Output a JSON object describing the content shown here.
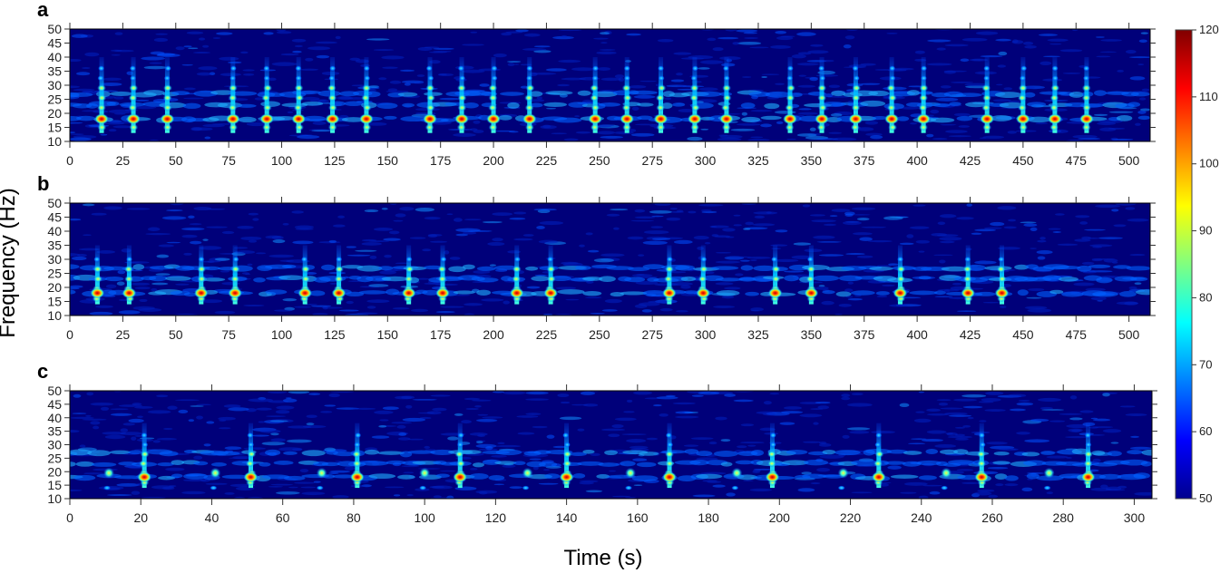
{
  "chart_data": [
    {
      "type": "heatmap",
      "panel_label": "a",
      "xlim": [
        0,
        510
      ],
      "ylim": [
        10,
        50
      ],
      "x_ticks": [
        "0",
        "25",
        "50",
        "75",
        "100",
        "125",
        "150",
        "175",
        "200",
        "225",
        "250",
        "275",
        "300",
        "325",
        "350",
        "375",
        "400",
        "425",
        "450",
        "475",
        "500"
      ],
      "y_ticks": [
        "10",
        "15",
        "20",
        "25",
        "30",
        "35",
        "40",
        "45",
        "50"
      ],
      "call_times_s": [
        15,
        30,
        46,
        77,
        93,
        108,
        124,
        140,
        170,
        185,
        200,
        217,
        248,
        263,
        279,
        295,
        310,
        340,
        355,
        371,
        388,
        403,
        433,
        450,
        465,
        480
      ],
      "call_freq_range_hz": [
        13,
        40
      ],
      "peak_freq_hz": 18
    },
    {
      "type": "heatmap",
      "panel_label": "b",
      "xlim": [
        0,
        510
      ],
      "ylim": [
        10,
        50
      ],
      "x_ticks": [
        "0",
        "25",
        "50",
        "75",
        "100",
        "125",
        "150",
        "175",
        "200",
        "225",
        "250",
        "275",
        "300",
        "325",
        "350",
        "375",
        "400",
        "425",
        "450",
        "475",
        "500"
      ],
      "y_ticks": [
        "10",
        "15",
        "20",
        "25",
        "30",
        "35",
        "40",
        "45",
        "50"
      ],
      "call_times_s": [
        13,
        28,
        62,
        78,
        111,
        127,
        160,
        176,
        211,
        227,
        283,
        299,
        333,
        350,
        392,
        424,
        440
      ],
      "call_freq_range_hz": [
        14,
        35
      ],
      "peak_freq_hz": 18
    },
    {
      "type": "heatmap",
      "panel_label": "c",
      "xlim": [
        0,
        305
      ],
      "ylim": [
        10,
        50
      ],
      "x_ticks": [
        "0",
        "20",
        "40",
        "60",
        "80",
        "100",
        "120",
        "140",
        "160",
        "180",
        "200",
        "220",
        "240",
        "260",
        "280",
        "300"
      ],
      "y_ticks": [
        "10",
        "15",
        "20",
        "25",
        "30",
        "35",
        "40",
        "45",
        "50"
      ],
      "long_call_times_s": [
        21,
        51,
        81,
        110,
        140,
        169,
        198,
        228,
        257,
        287
      ],
      "short_call_times_s": [
        11,
        41,
        71,
        100,
        129,
        158,
        188,
        218,
        247,
        276
      ],
      "call_freq_range_hz": [
        14,
        38
      ],
      "peak_freq_hz": 18
    }
  ],
  "xlabel": "Time (s)",
  "ylabel": "Frequency (Hz)",
  "colorbar": {
    "range": [
      50,
      120
    ],
    "tick_labels": [
      "50",
      "60",
      "70",
      "80",
      "90",
      "100",
      "110",
      "120"
    ],
    "colormap": "jet",
    "colors": [
      "#00008f",
      "#0000ff",
      "#0080ff",
      "#00ffff",
      "#80ff80",
      "#ffff00",
      "#ff8000",
      "#ff0000",
      "#800000"
    ]
  }
}
